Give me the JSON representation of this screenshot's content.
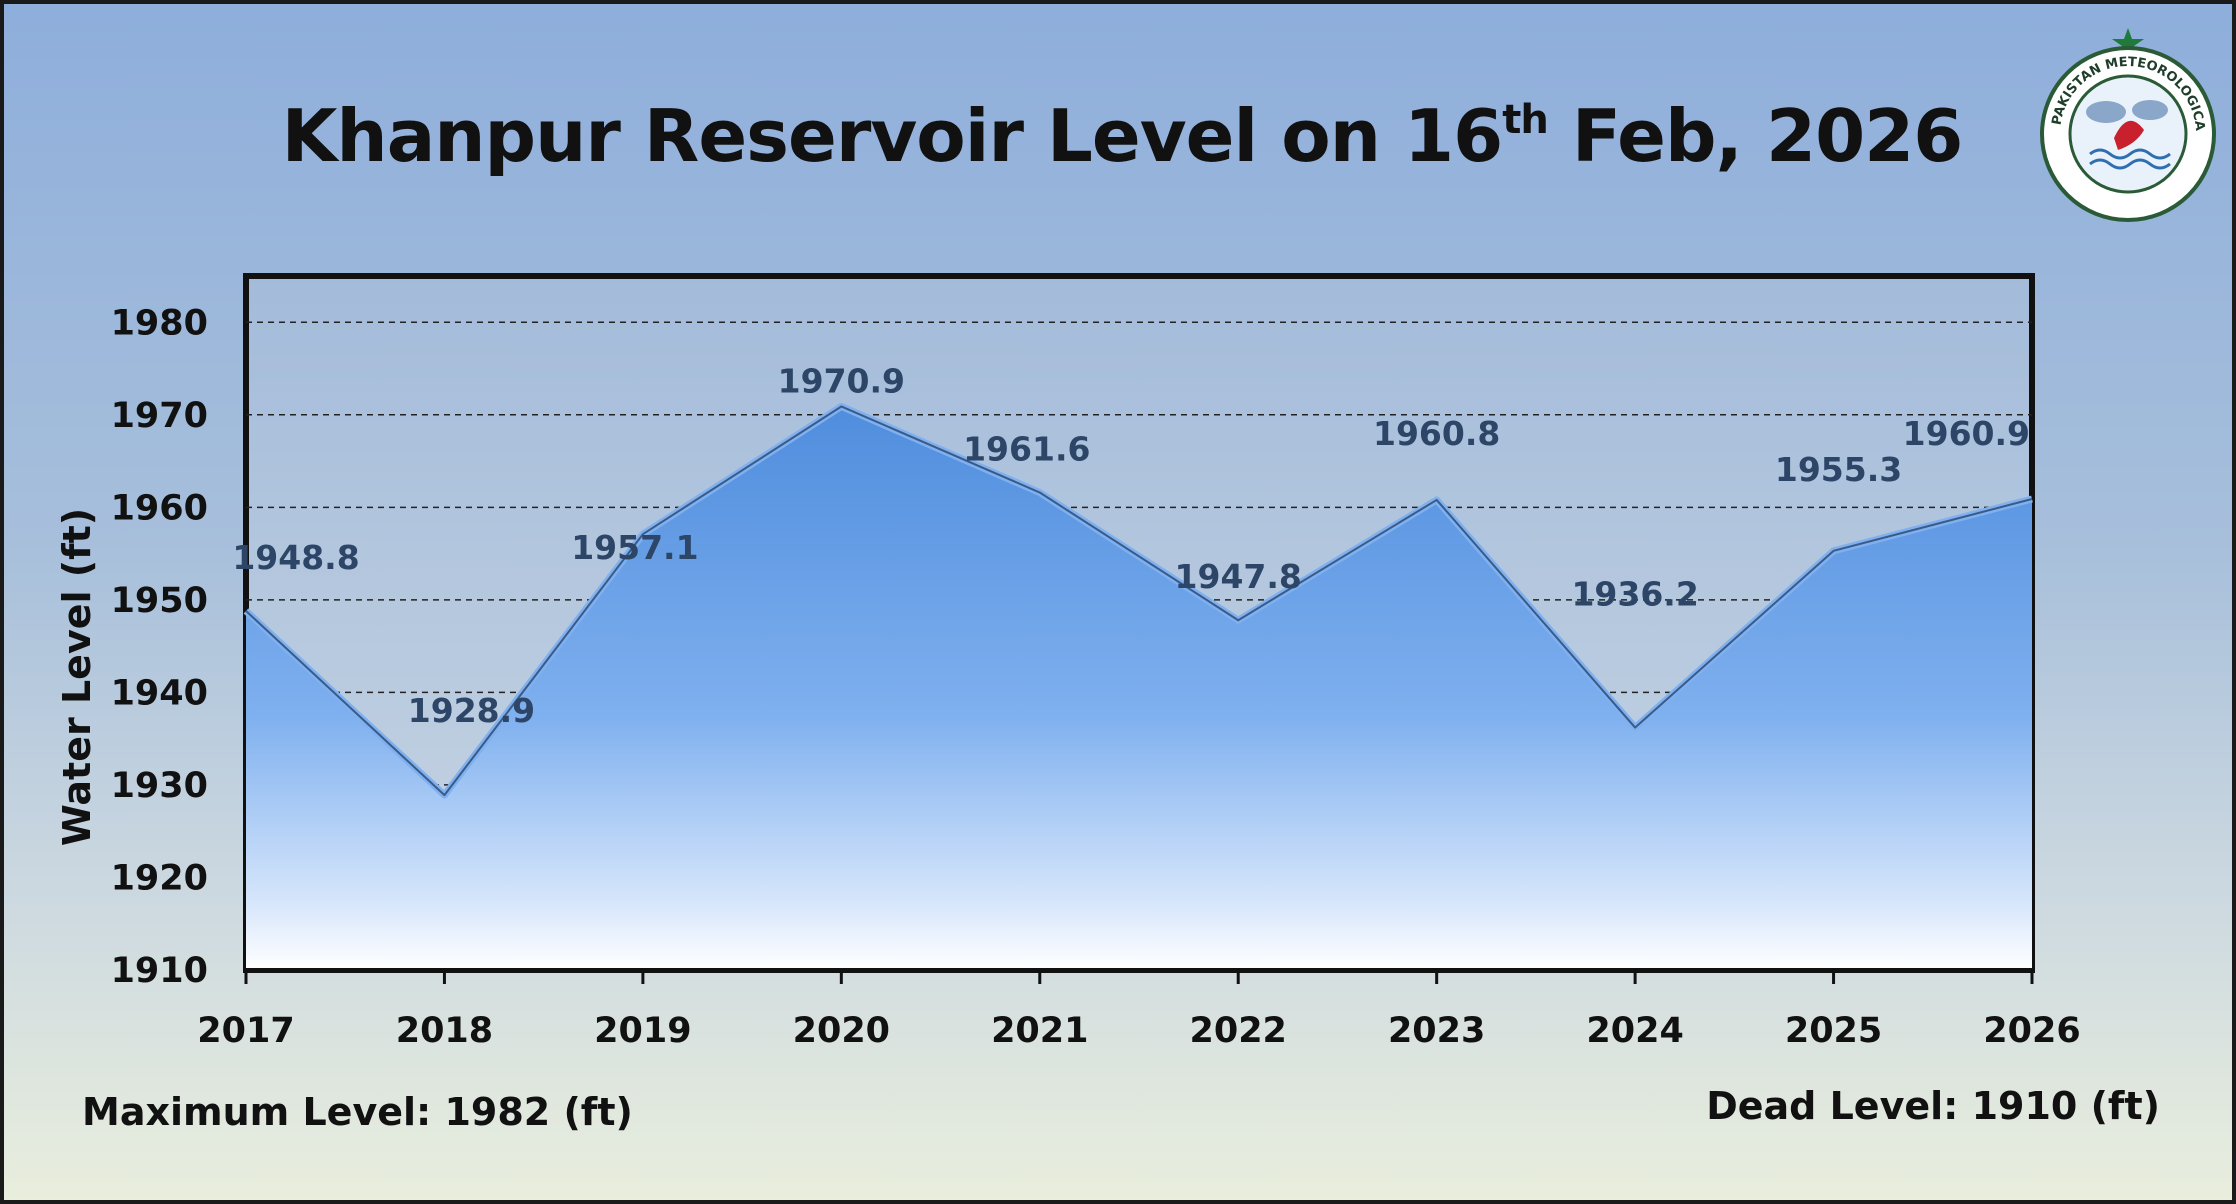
{
  "header": {
    "title_main": "Khanpur Reservoir Level on 16",
    "title_sup": "th",
    "title_tail": " Feb, 2026"
  },
  "notes": {
    "max_level": "Maximum Level: 1982 (ft)",
    "dead_level": "Dead Level: 1910 (ft)"
  },
  "logo": {
    "icon": "pakistan-meteorological-department-seal",
    "text": "PAKISTAN METEOROLOGICAL DEPARTMENT",
    "colors": [
      "#1f7a3c",
      "#c8202d",
      "#2f6fb0"
    ]
  },
  "chart_data": {
    "type": "area",
    "title": "Khanpur Reservoir Level on 16th Feb, 2026",
    "ylabel": "Water Level (ft)",
    "xlabel": "",
    "categories": [
      "2017",
      "2018",
      "2019",
      "2020",
      "2021",
      "2022",
      "2023",
      "2024",
      "2025",
      "2026"
    ],
    "values": [
      1948.8,
      1928.9,
      1957.1,
      1970.9,
      1961.6,
      1947.8,
      1960.8,
      1936.2,
      1955.3,
      1960.9
    ],
    "data_labels": [
      "1948.8",
      "1928.9",
      "1957.1",
      "1970.9",
      "1961.6",
      "1947.8",
      "1960.8",
      "1936.2",
      "1955.3",
      "1960.9"
    ],
    "ylim": [
      1910,
      1985
    ],
    "yticks": [
      "1910",
      "1920",
      "1930",
      "1940",
      "1950",
      "1960",
      "1970",
      "1980"
    ],
    "grid": true,
    "colors": {
      "fill_top": "#5b94e0",
      "fill_bottom": "#ffffff",
      "line": "#7fb0f0",
      "label": "#2d4566"
    }
  }
}
